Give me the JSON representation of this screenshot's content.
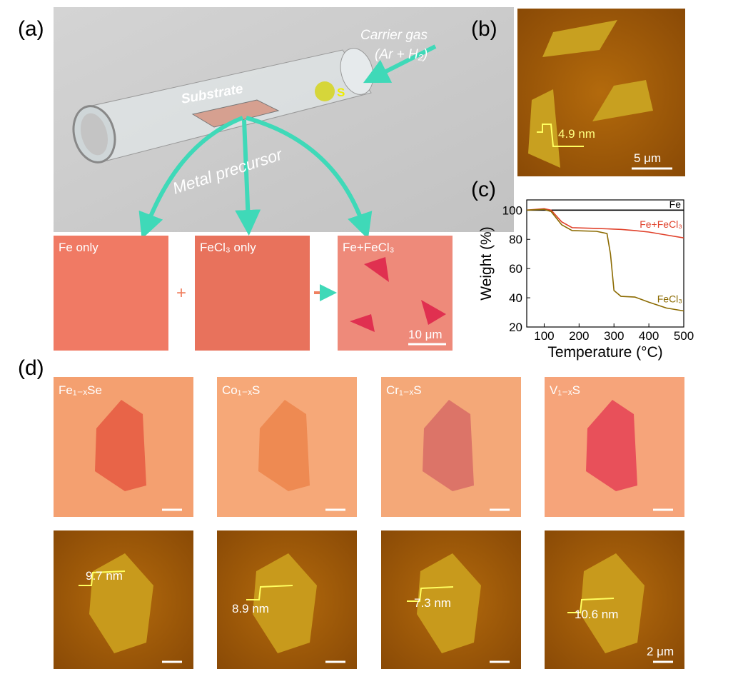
{
  "panel_labels": [
    "(a)",
    "(b)",
    "(c)",
    "(d)"
  ],
  "panel_a": {
    "carrier_gas": "Carrier gas",
    "gas": "(Ar + H₂)",
    "substrate": "Substrate",
    "sulfur": "S",
    "metal_precursor": "Metal precursor",
    "images": [
      "Fe only",
      "FeCl₃ only",
      "Fe+FeCl₃"
    ],
    "plus": "+",
    "scale": "10 μm"
  },
  "panel_b": {
    "height": "4.9 nm",
    "scale": "5 μm"
  },
  "panel_d": {
    "materials": [
      "Fe₁₋ₓSe",
      "Co₁₋ₓS",
      "Cr₁₋ₓS",
      "V₁₋ₓS"
    ],
    "heights": [
      "9.7 nm",
      "8.9 nm",
      "7.3 nm",
      "10.6 nm"
    ],
    "scale": "2 μm"
  },
  "chart_data": {
    "type": "line",
    "x_label": "Temperature (°C)",
    "y_label": "Weight (%)",
    "x": [
      50,
      100,
      120,
      150,
      180,
      250,
      280,
      290,
      300,
      320,
      360,
      400,
      450,
      500
    ],
    "series": [
      {
        "name": "Fe",
        "color": "#000000",
        "values": [
          100,
          100,
          100,
          100,
          100,
          100,
          100,
          100,
          100,
          100,
          100,
          100,
          100,
          100
        ]
      },
      {
        "name": "Fe+FeCl₃",
        "color": "#e0402a",
        "values": [
          100,
          101,
          100,
          92,
          88,
          87.5,
          87.2,
          87.1,
          87,
          86.8,
          86,
          85,
          83,
          81
        ]
      },
      {
        "name": "FeCl₃",
        "color": "#8b6a00",
        "values": [
          100,
          100.5,
          99,
          90,
          86,
          85.5,
          84,
          70,
          45,
          41,
          40.5,
          37,
          33,
          31
        ]
      }
    ],
    "xlim": [
      50,
      500
    ],
    "xticks": [
      100,
      200,
      300,
      400,
      500
    ],
    "ylim": [
      20,
      107
    ],
    "yticks": [
      20,
      40,
      60,
      80,
      100
    ]
  }
}
